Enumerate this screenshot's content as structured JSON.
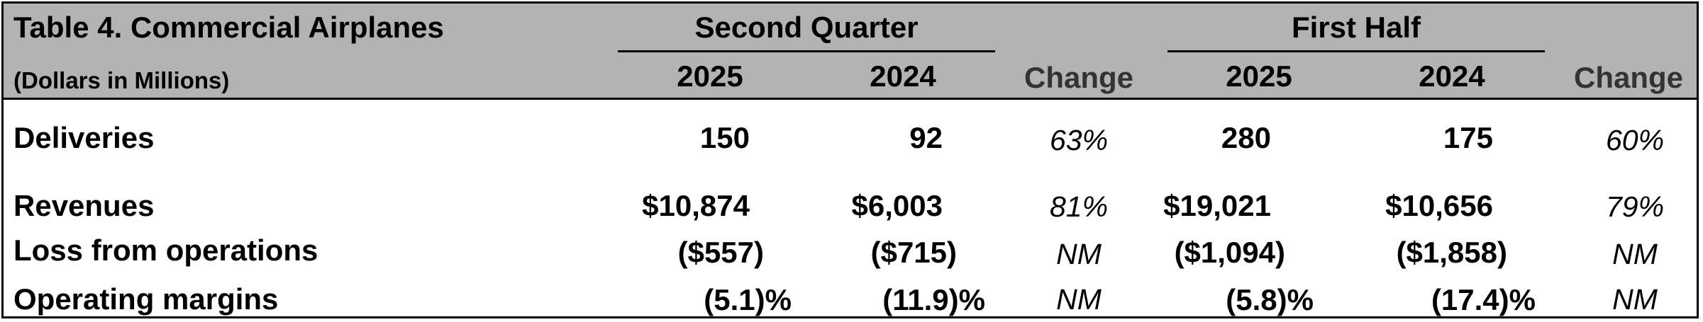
{
  "table": {
    "title": "Table 4. Commercial Airplanes",
    "subtitle": "(Dollars in Millions)",
    "groups": [
      "Second Quarter",
      "First Half"
    ],
    "years": [
      "2025",
      "2024",
      "2025",
      "2024"
    ],
    "change_label": "Change",
    "rows": [
      {
        "label": "Deliveries",
        "q2_2025": "150",
        "q2_2024": "92",
        "q_change": "63%",
        "h1_2025": "280",
        "h1_2024": "175",
        "h_change": "60%"
      },
      {
        "label": "Revenues",
        "q2_2025": "$10,874",
        "q2_2024": "$6,003",
        "q_change": "81%",
        "h1_2025": "$19,021",
        "h1_2024": "$10,656",
        "h_change": "79%"
      },
      {
        "label": "Loss from operations",
        "q2_2025": "($557)",
        "q2_2024": "($715)",
        "q_change": "NM",
        "h1_2025": "($1,094)",
        "h1_2024": "($1,858)",
        "h_change": "NM"
      },
      {
        "label": "Operating margins",
        "q2_2025": "(5.1)%",
        "q2_2024": "(11.9)%",
        "q_change": "NM",
        "h1_2025": "(5.8)%",
        "h1_2024": "(17.4)%",
        "h_change": "NM"
      }
    ]
  }
}
